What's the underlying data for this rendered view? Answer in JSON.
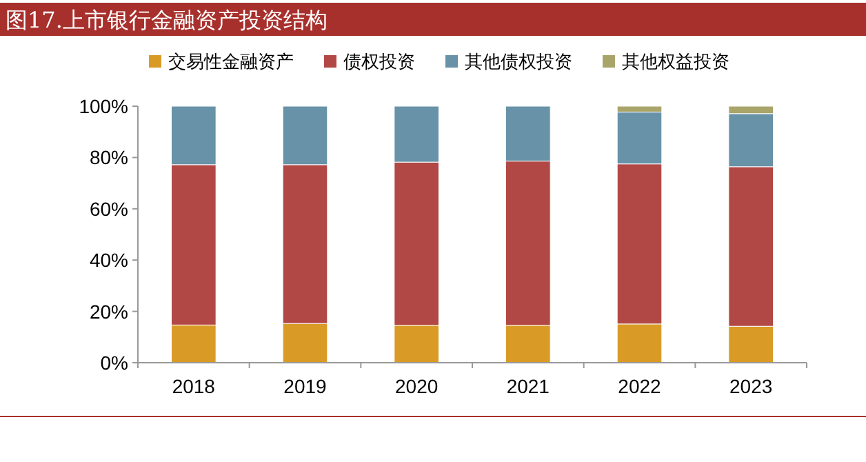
{
  "chart_data": {
    "type": "bar",
    "stacked": true,
    "title": "图17.上市银行金融资产投资结构",
    "categories": [
      "2018",
      "2019",
      "2020",
      "2021",
      "2022",
      "2023"
    ],
    "series": [
      {
        "name": "交易性金融资产",
        "color": "#d99b26",
        "values": [
          14.7,
          15.3,
          14.6,
          14.6,
          15.1,
          14.2
        ]
      },
      {
        "name": "债权投资",
        "color": "#b24846",
        "values": [
          62.5,
          61.9,
          63.6,
          64.0,
          62.4,
          62.2
        ]
      },
      {
        "name": "其他债权投资",
        "color": "#6892a8",
        "values": [
          22.8,
          22.8,
          21.8,
          21.4,
          20.2,
          20.7
        ]
      },
      {
        "name": "其他权益投资",
        "color": "#a9a56a",
        "values": [
          0,
          0,
          0,
          0,
          2.3,
          2.9
        ]
      }
    ],
    "ylim": [
      0,
      100
    ],
    "yticks": [
      {
        "value": 0,
        "label": "0%"
      },
      {
        "value": 20,
        "label": "20%"
      },
      {
        "value": 40,
        "label": "40%"
      },
      {
        "value": 60,
        "label": "60%"
      },
      {
        "value": 80,
        "label": "80%"
      },
      {
        "value": 100,
        "label": "100%"
      }
    ],
    "grid": false,
    "legend": "top"
  }
}
